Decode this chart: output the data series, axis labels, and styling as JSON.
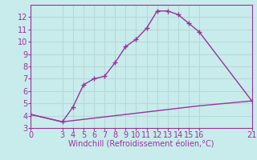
{
  "xlabel": "Windchill (Refroidissement éolien,°C)",
  "bg_color": "#c8ecec",
  "grid_color": "#b8d8d8",
  "line_color": "#993399",
  "upper_x": [
    0,
    3,
    4,
    5,
    6,
    7,
    8,
    9,
    10,
    11,
    12,
    13,
    14,
    15,
    16,
    21
  ],
  "upper_y": [
    4.1,
    3.5,
    4.7,
    6.5,
    7.0,
    7.2,
    8.3,
    9.6,
    10.2,
    11.1,
    12.5,
    12.5,
    12.2,
    11.5,
    10.8,
    5.2
  ],
  "lower_x": [
    0,
    3,
    4,
    5,
    6,
    7,
    8,
    9,
    10,
    11,
    12,
    13,
    14,
    15,
    16,
    21
  ],
  "lower_y": [
    4.1,
    3.5,
    3.6,
    3.7,
    3.8,
    3.9,
    4.0,
    4.1,
    4.2,
    4.3,
    4.4,
    4.5,
    4.6,
    4.7,
    4.8,
    5.2
  ],
  "xticks": [
    0,
    3,
    4,
    5,
    6,
    7,
    8,
    9,
    10,
    11,
    12,
    13,
    14,
    15,
    16,
    21
  ],
  "yticks": [
    3,
    4,
    5,
    6,
    7,
    8,
    9,
    10,
    11,
    12
  ],
  "xlim": [
    0,
    21
  ],
  "ylim": [
    3,
    13.0
  ],
  "marker": "+",
  "tick_fontsize": 7,
  "xlabel_fontsize": 7,
  "line_width": 1.0,
  "marker_size": 4
}
